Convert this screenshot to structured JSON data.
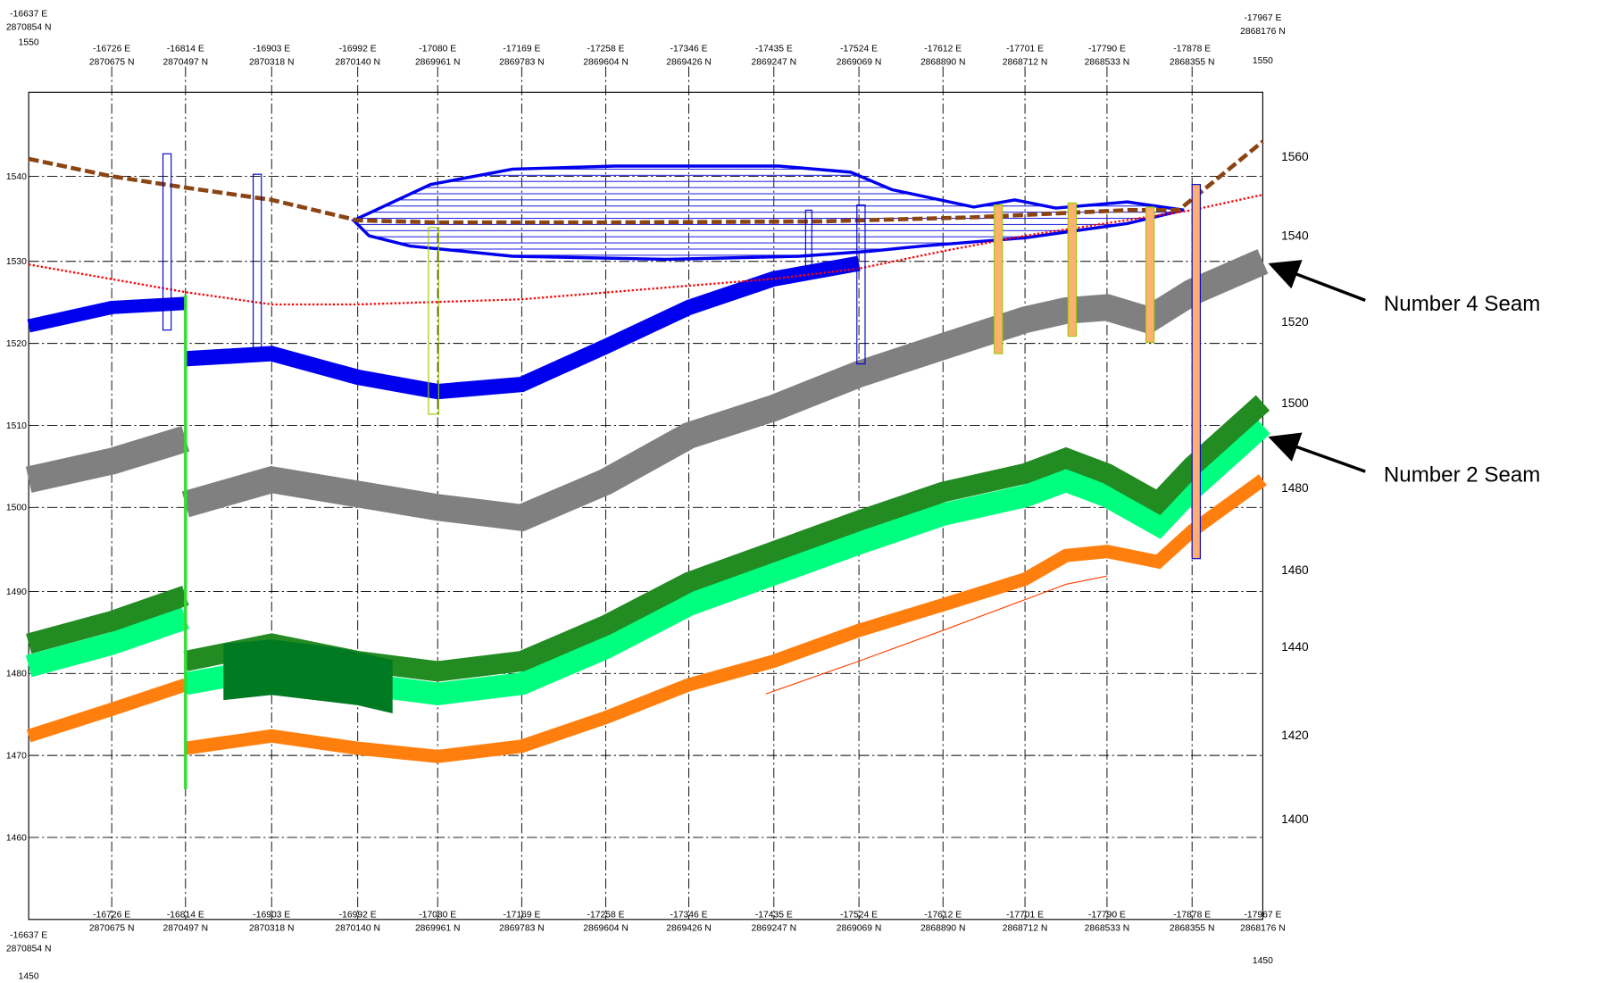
{
  "columns": [
    {
      "easting": "-16637 E",
      "northing": "2870854 N"
    },
    {
      "easting": "-16726 E",
      "northing": "2870675 N"
    },
    {
      "easting": "-16814 E",
      "northing": "2870497 N"
    },
    {
      "easting": "-16903 E",
      "northing": "2870318 N"
    },
    {
      "easting": "-16992 E",
      "northing": "2870140 N"
    },
    {
      "easting": "-17080 E",
      "northing": "2869961 N"
    },
    {
      "easting": "-17169 E",
      "northing": "2869783 N"
    },
    {
      "easting": "-17258 E",
      "northing": "2869604 N"
    },
    {
      "easting": "-17346 E",
      "northing": "2869426 N"
    },
    {
      "easting": "-17435 E",
      "northing": "2869247 N"
    },
    {
      "easting": "-17524 E",
      "northing": "2869069 N"
    },
    {
      "easting": "-17612 E",
      "northing": "2868890 N"
    },
    {
      "easting": "-17701 E",
      "northing": "2868712 N"
    },
    {
      "easting": "-17790 E",
      "northing": "2868533 N"
    },
    {
      "easting": "-17878 E",
      "northing": "2868355 N"
    },
    {
      "easting": "-17967 E",
      "northing": "2868176 N"
    }
  ],
  "corner_elevations": {
    "top_left": "1550",
    "top_right": "1550",
    "bottom_left": "1450",
    "bottom_right": "1450"
  },
  "left_axis": [
    "1540",
    "1530",
    "1520",
    "1510",
    "1500",
    "1490",
    "1480",
    "1470",
    "1460"
  ],
  "right_axis": [
    "1560",
    "1540",
    "1520",
    "1500",
    "1480",
    "1460",
    "1440",
    "1420",
    "1400"
  ],
  "annotations": [
    "Number 4 Seam",
    "Number 2 Seam"
  ]
}
